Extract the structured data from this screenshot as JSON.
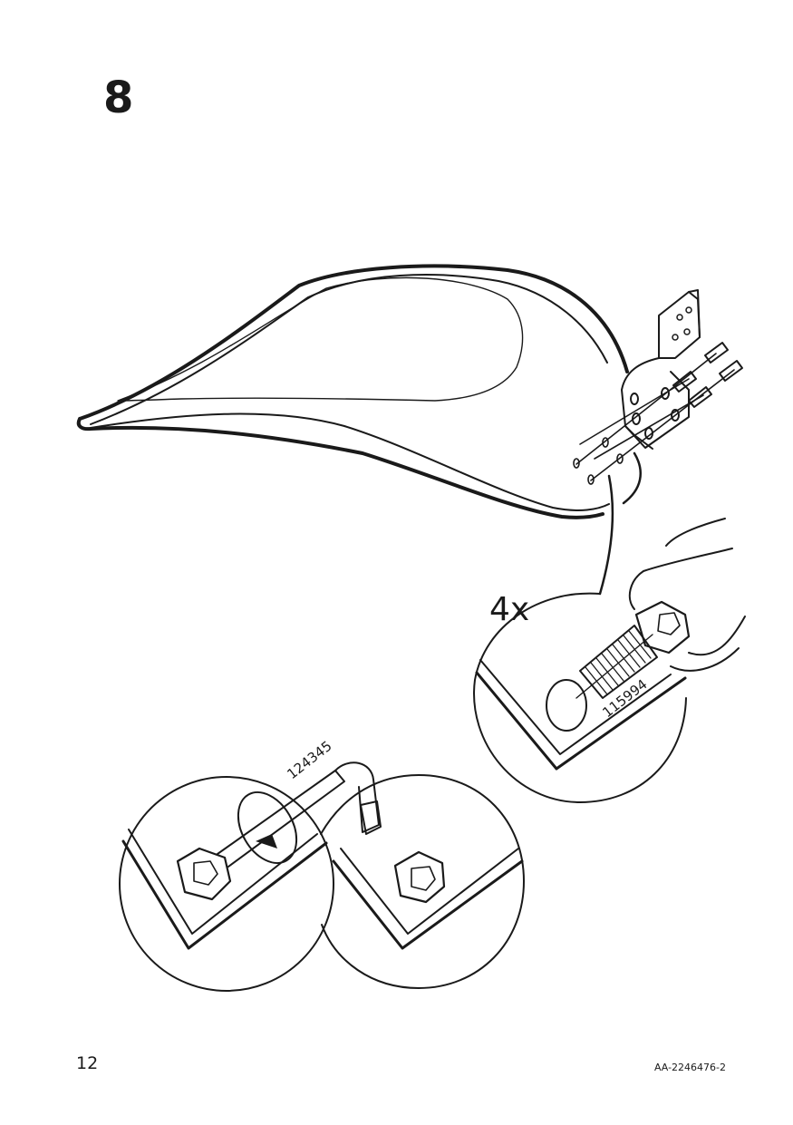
{
  "step": {
    "number": "8"
  },
  "callouts": {
    "quantity": "4x",
    "screw_part_number": "115994",
    "key_part_number": "124345"
  },
  "footer": {
    "page_number": "12",
    "document_code": "AA-2246476-2"
  }
}
